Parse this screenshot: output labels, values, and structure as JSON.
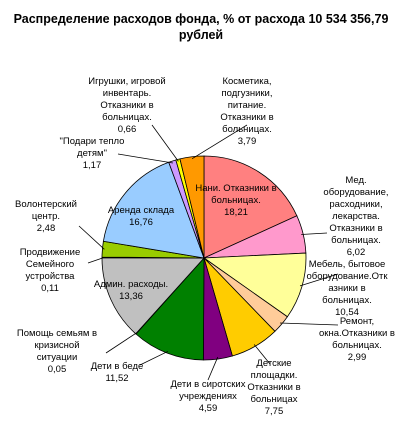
{
  "chart_data": {
    "type": "pie",
    "title": [
      "Распределение расходов фонда, % от расхода 10 534 356,79",
      "рублей"
    ],
    "slices": [
      {
        "label": [
          "Нани. Отказники в",
          "больницах."
        ],
        "value": "18,21",
        "v": 18.21,
        "color": "#ff8080"
      },
      {
        "label": [
          "Мед.",
          "оборудование,",
          "расходники,",
          "лекарства.",
          "Отказники в",
          "больницах."
        ],
        "value": "6,02",
        "v": 6.02,
        "color": "#ff99cc"
      },
      {
        "label": [
          "Мебель, бытовое",
          "оборудование.Отк",
          "азники в",
          "больницах."
        ],
        "value": "10,54",
        "v": 10.54,
        "color": "#ffff99"
      },
      {
        "label": [
          "Ремонт,",
          "окна.Отказники в",
          "больницах."
        ],
        "value": "2,99",
        "v": 2.99,
        "color": "#ffcc99"
      },
      {
        "label": [
          "Детские",
          "площадки.",
          "Отказники в",
          "больницах"
        ],
        "value": "7,75",
        "v": 7.75,
        "color": "#ffcc00"
      },
      {
        "label": [
          "Дети в сиротских",
          "учреждениях"
        ],
        "value": "4,59",
        "v": 4.59,
        "color": "#800080"
      },
      {
        "label": [
          "Дети в беде"
        ],
        "value": "11,52",
        "v": 11.52,
        "color": "#008000"
      },
      {
        "label": [
          "Помощь семьям в",
          "кризисной",
          "ситуации"
        ],
        "value": "0,05",
        "v": 0.05,
        "color": "#ffffff"
      },
      {
        "label": [
          "Админ. расходы."
        ],
        "value": "13,36",
        "v": 13.36,
        "color": "#c0c0c0"
      },
      {
        "label": [
          "Продвижение",
          "Семейного",
          "устройства"
        ],
        "value": "0,11",
        "v": 0.11,
        "color": "#333399"
      },
      {
        "label": [
          "Волонтерский",
          "центр."
        ],
        "value": "2,48",
        "v": 2.48,
        "color": "#99cc00"
      },
      {
        "label": [
          "Аренда склада"
        ],
        "value": "16,76",
        "v": 16.76,
        "color": "#99ccff"
      },
      {
        "label": [
          "\"Подари тепло",
          "детям\""
        ],
        "value": "1,17",
        "v": 1.17,
        "color": "#cc99ff"
      },
      {
        "label": [
          "Игрушки, игровой",
          "инвентарь.",
          "Отказники в",
          "больницах."
        ],
        "value": "0,66",
        "v": 0.66,
        "color": "#ffff00"
      },
      {
        "label": [
          "Косметика,",
          "подгузники,",
          "питание.",
          "Отказники в",
          "больницах."
        ],
        "value": "3,79",
        "v": 3.79,
        "color": "#ff9900"
      }
    ]
  }
}
